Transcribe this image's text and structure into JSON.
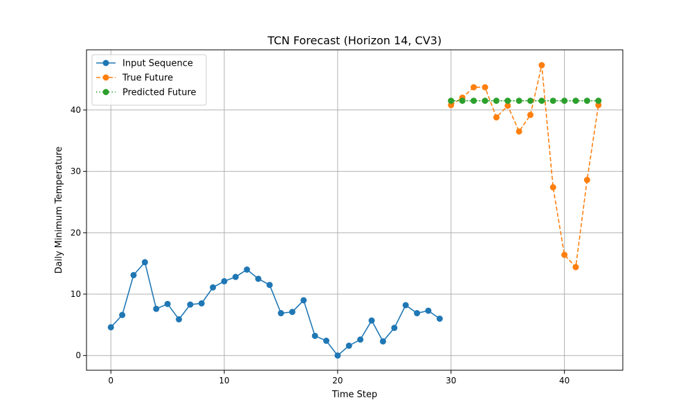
{
  "chart_data": {
    "type": "line",
    "title": "TCN Forecast (Horizon 14, CV3)",
    "xlabel": "Time Step",
    "ylabel": "Daily Minimum Temperature",
    "xlim": [
      -2.15,
      45.15
    ],
    "ylim": [
      -2.4,
      49.8
    ],
    "x_ticks": [
      0,
      10,
      20,
      30,
      40
    ],
    "y_ticks": [
      0,
      10,
      20,
      30,
      40
    ],
    "grid": true,
    "legend_position": "upper-left",
    "series": [
      {
        "name": "Input Sequence",
        "color": "#1f77b4",
        "linestyle": "solid",
        "marker": "circle",
        "x": [
          0,
          1,
          2,
          3,
          4,
          5,
          6,
          7,
          8,
          9,
          10,
          11,
          12,
          13,
          14,
          15,
          16,
          17,
          18,
          19,
          20,
          21,
          22,
          23,
          24,
          25,
          26,
          27,
          28,
          29
        ],
        "y": [
          4.6,
          6.6,
          13.1,
          15.2,
          7.6,
          8.4,
          5.9,
          8.3,
          8.5,
          11.1,
          12.1,
          12.8,
          14.0,
          12.5,
          11.5,
          6.9,
          7.1,
          9.0,
          3.2,
          2.4,
          0.0,
          1.6,
          2.6,
          5.7,
          2.3,
          4.5,
          8.2,
          6.9,
          7.3,
          6.0
        ]
      },
      {
        "name": "True Future",
        "color": "#ff7f0e",
        "linestyle": "dashed",
        "marker": "circle",
        "x": [
          30,
          31,
          32,
          33,
          34,
          35,
          36,
          37,
          38,
          39,
          40,
          41,
          42,
          43
        ],
        "y": [
          40.8,
          42.0,
          43.7,
          43.7,
          38.8,
          40.7,
          36.5,
          39.2,
          47.3,
          27.4,
          16.4,
          14.4,
          28.6,
          40.8
        ]
      },
      {
        "name": "Predicted Future",
        "color": "#2ca02c",
        "linestyle": "dotted",
        "marker": "circle",
        "x": [
          30,
          31,
          32,
          33,
          34,
          35,
          36,
          37,
          38,
          39,
          40,
          41,
          42,
          43
        ],
        "y": [
          41.5,
          41.5,
          41.5,
          41.5,
          41.5,
          41.5,
          41.5,
          41.5,
          41.5,
          41.5,
          41.5,
          41.5,
          41.5,
          41.5
        ]
      }
    ]
  }
}
